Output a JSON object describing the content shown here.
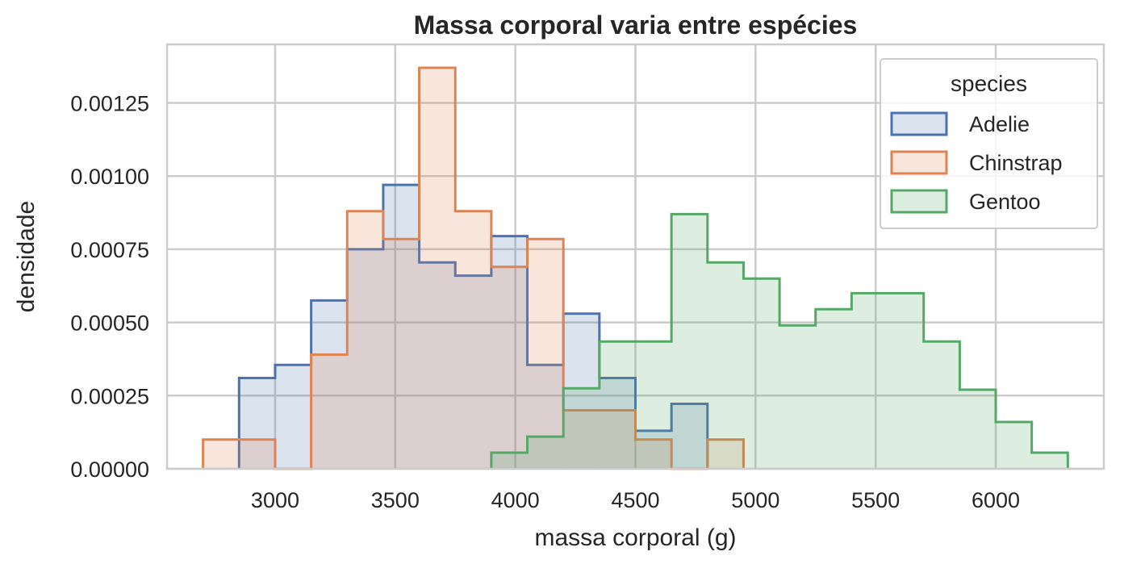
{
  "chart_data": {
    "type": "histogram",
    "title": "Massa corporal varia entre espécies",
    "xlabel": "massa corporal (g)",
    "ylabel": "densidade",
    "xlim": [
      2550,
      6450
    ],
    "ylim": [
      0,
      0.00145
    ],
    "xticks": [
      3000,
      3500,
      4000,
      4500,
      5000,
      5500,
      6000
    ],
    "yticks": [
      0,
      0.00025,
      0.0005,
      0.00075,
      0.001,
      0.00125
    ],
    "ytick_labels": [
      "0.00000",
      "0.00025",
      "0.00050",
      "0.00075",
      "0.00100",
      "0.00125"
    ],
    "grid": true,
    "legend": {
      "title": "species",
      "placement": "top-right"
    },
    "series": [
      {
        "name": "Adelie",
        "color": "#4c72b0",
        "bin_edges": [
          2850,
          3000,
          3150,
          3300,
          3450,
          3600,
          3750,
          3900,
          4050,
          4200,
          4350,
          4500,
          4650,
          4800
        ],
        "values": [
          0.00031,
          0.000355,
          0.000575,
          0.00075,
          0.00097,
          0.000705,
          0.00066,
          0.000795,
          0.000355,
          0.00053,
          0.00031,
          0.00013,
          0.000222
        ]
      },
      {
        "name": "Chinstrap",
        "color": "#dd8452",
        "bin_edges": [
          2700,
          2850,
          3000,
          3150,
          3300,
          3450,
          3600,
          3750,
          3900,
          4050,
          4200,
          4350,
          4500,
          4650,
          4800,
          4950
        ],
        "values": [
          0.0001,
          0.0001,
          0,
          0.00039,
          0.00088,
          0.000785,
          0.00137,
          0.00088,
          0.00069,
          0.000785,
          0.0002,
          0.0002,
          0.0001,
          0,
          0.0001
        ]
      },
      {
        "name": "Gentoo",
        "color": "#55a868",
        "bin_edges": [
          3900,
          4050,
          4200,
          4350,
          4500,
          4650,
          4800,
          4950,
          5100,
          5250,
          5400,
          5550,
          5700,
          5850,
          6000,
          6150,
          6300
        ],
        "values": [
          5.5e-05,
          0.00011,
          0.000275,
          0.000435,
          0.000435,
          0.00087,
          0.000705,
          0.00065,
          0.00049,
          0.000545,
          0.0006,
          0.0006,
          0.000435,
          0.00027,
          0.00016,
          5.5e-05
        ]
      }
    ]
  }
}
